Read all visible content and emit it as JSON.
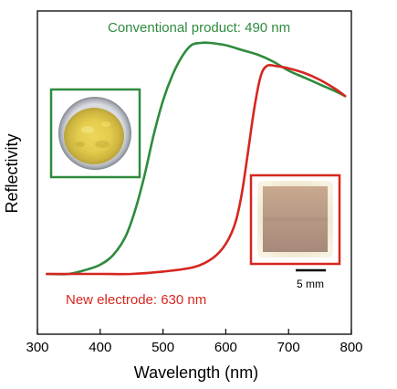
{
  "chart_data": {
    "type": "line",
    "title": "",
    "xlabel": "Wavelength (nm)",
    "ylabel": "Reflectivity",
    "xlim": [
      300,
      800
    ],
    "ylim": [
      0,
      1
    ],
    "x_ticks": [
      300,
      400,
      500,
      600,
      700,
      800
    ],
    "show_y_ticks": false,
    "grid": false,
    "colors": {
      "green": "#2e8b3e",
      "red": "#d6261f"
    },
    "series": [
      {
        "color": "#2e8b3e",
        "x": [
          315,
          350,
          380,
          400,
          420,
          440,
          455,
          470,
          485,
          500,
          515,
          530,
          545,
          560,
          575,
          600,
          625,
          650,
          675,
          700,
          725,
          750,
          775,
          790
        ],
        "y": [
          0.0,
          0.0,
          0.02,
          0.04,
          0.08,
          0.16,
          0.27,
          0.42,
          0.6,
          0.75,
          0.86,
          0.94,
          0.99,
          1.0,
          1.0,
          0.99,
          0.97,
          0.95,
          0.92,
          0.88,
          0.85,
          0.82,
          0.79,
          0.77
        ]
      },
      {
        "color": "#d6261f",
        "x": [
          315,
          350,
          400,
          450,
          500,
          550,
          580,
          600,
          615,
          625,
          635,
          645,
          655,
          665,
          680,
          700,
          725,
          750,
          775,
          790
        ],
        "y": [
          0.0,
          0.0,
          0.0,
          0.0,
          0.01,
          0.03,
          0.07,
          0.13,
          0.22,
          0.34,
          0.52,
          0.71,
          0.85,
          0.9,
          0.9,
          0.89,
          0.87,
          0.84,
          0.8,
          0.77
        ]
      }
    ],
    "annotations": [
      {
        "text": "Conventional product: 490 nm",
        "color": "#2e8b3e"
      },
      {
        "text": "New electrode: 630 nm",
        "color": "#d6261f"
      }
    ],
    "scale_bar_label": "5 mm"
  }
}
